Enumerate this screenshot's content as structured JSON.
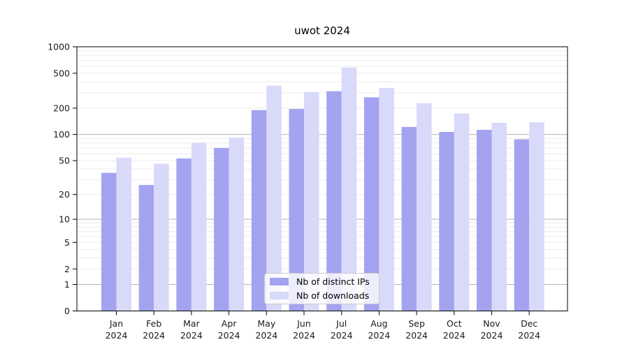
{
  "figure": {
    "title": "uwot 2024"
  },
  "chart_data": {
    "type": "bar",
    "title": "uwot 2024",
    "categories": [
      "Jan",
      "Feb",
      "Mar",
      "Apr",
      "May",
      "Jun",
      "Jul",
      "Aug",
      "Sep",
      "Oct",
      "Nov",
      "Dec"
    ],
    "year_label": "2024",
    "series": [
      {
        "name": "Nb of distinct IPs",
        "color": "#a3a3f0",
        "values": [
          36,
          26,
          53,
          70,
          190,
          196,
          312,
          266,
          122,
          107,
          113,
          88
        ]
      },
      {
        "name": "Nb of downloads",
        "color": "#d9d9f9",
        "values": [
          54,
          46,
          80,
          92,
          361,
          306,
          581,
          340,
          228,
          174,
          136,
          138
        ]
      }
    ],
    "y_axis": {
      "scale": "log1p",
      "ylim": [
        0,
        1000
      ],
      "ticks": [
        0,
        1,
        2,
        5,
        10,
        20,
        50,
        100,
        200,
        500,
        1000
      ],
      "major_gridlines": [
        1,
        10,
        100,
        1000
      ],
      "minor_gridlines": [
        2,
        3,
        4,
        5,
        6,
        7,
        8,
        9,
        20,
        30,
        40,
        50,
        60,
        70,
        80,
        90,
        200,
        300,
        400,
        500,
        600,
        700,
        800,
        900
      ]
    },
    "legend": {
      "position": "lower center",
      "entries": [
        "Nb of distinct IPs",
        "Nb of downloads"
      ]
    },
    "colors": {
      "minor_grid": "#ebebeb",
      "major_grid": "#b3b3b3",
      "spine": "#000000",
      "tick_text": "#1a1a1a",
      "background": "#ffffff"
    }
  }
}
